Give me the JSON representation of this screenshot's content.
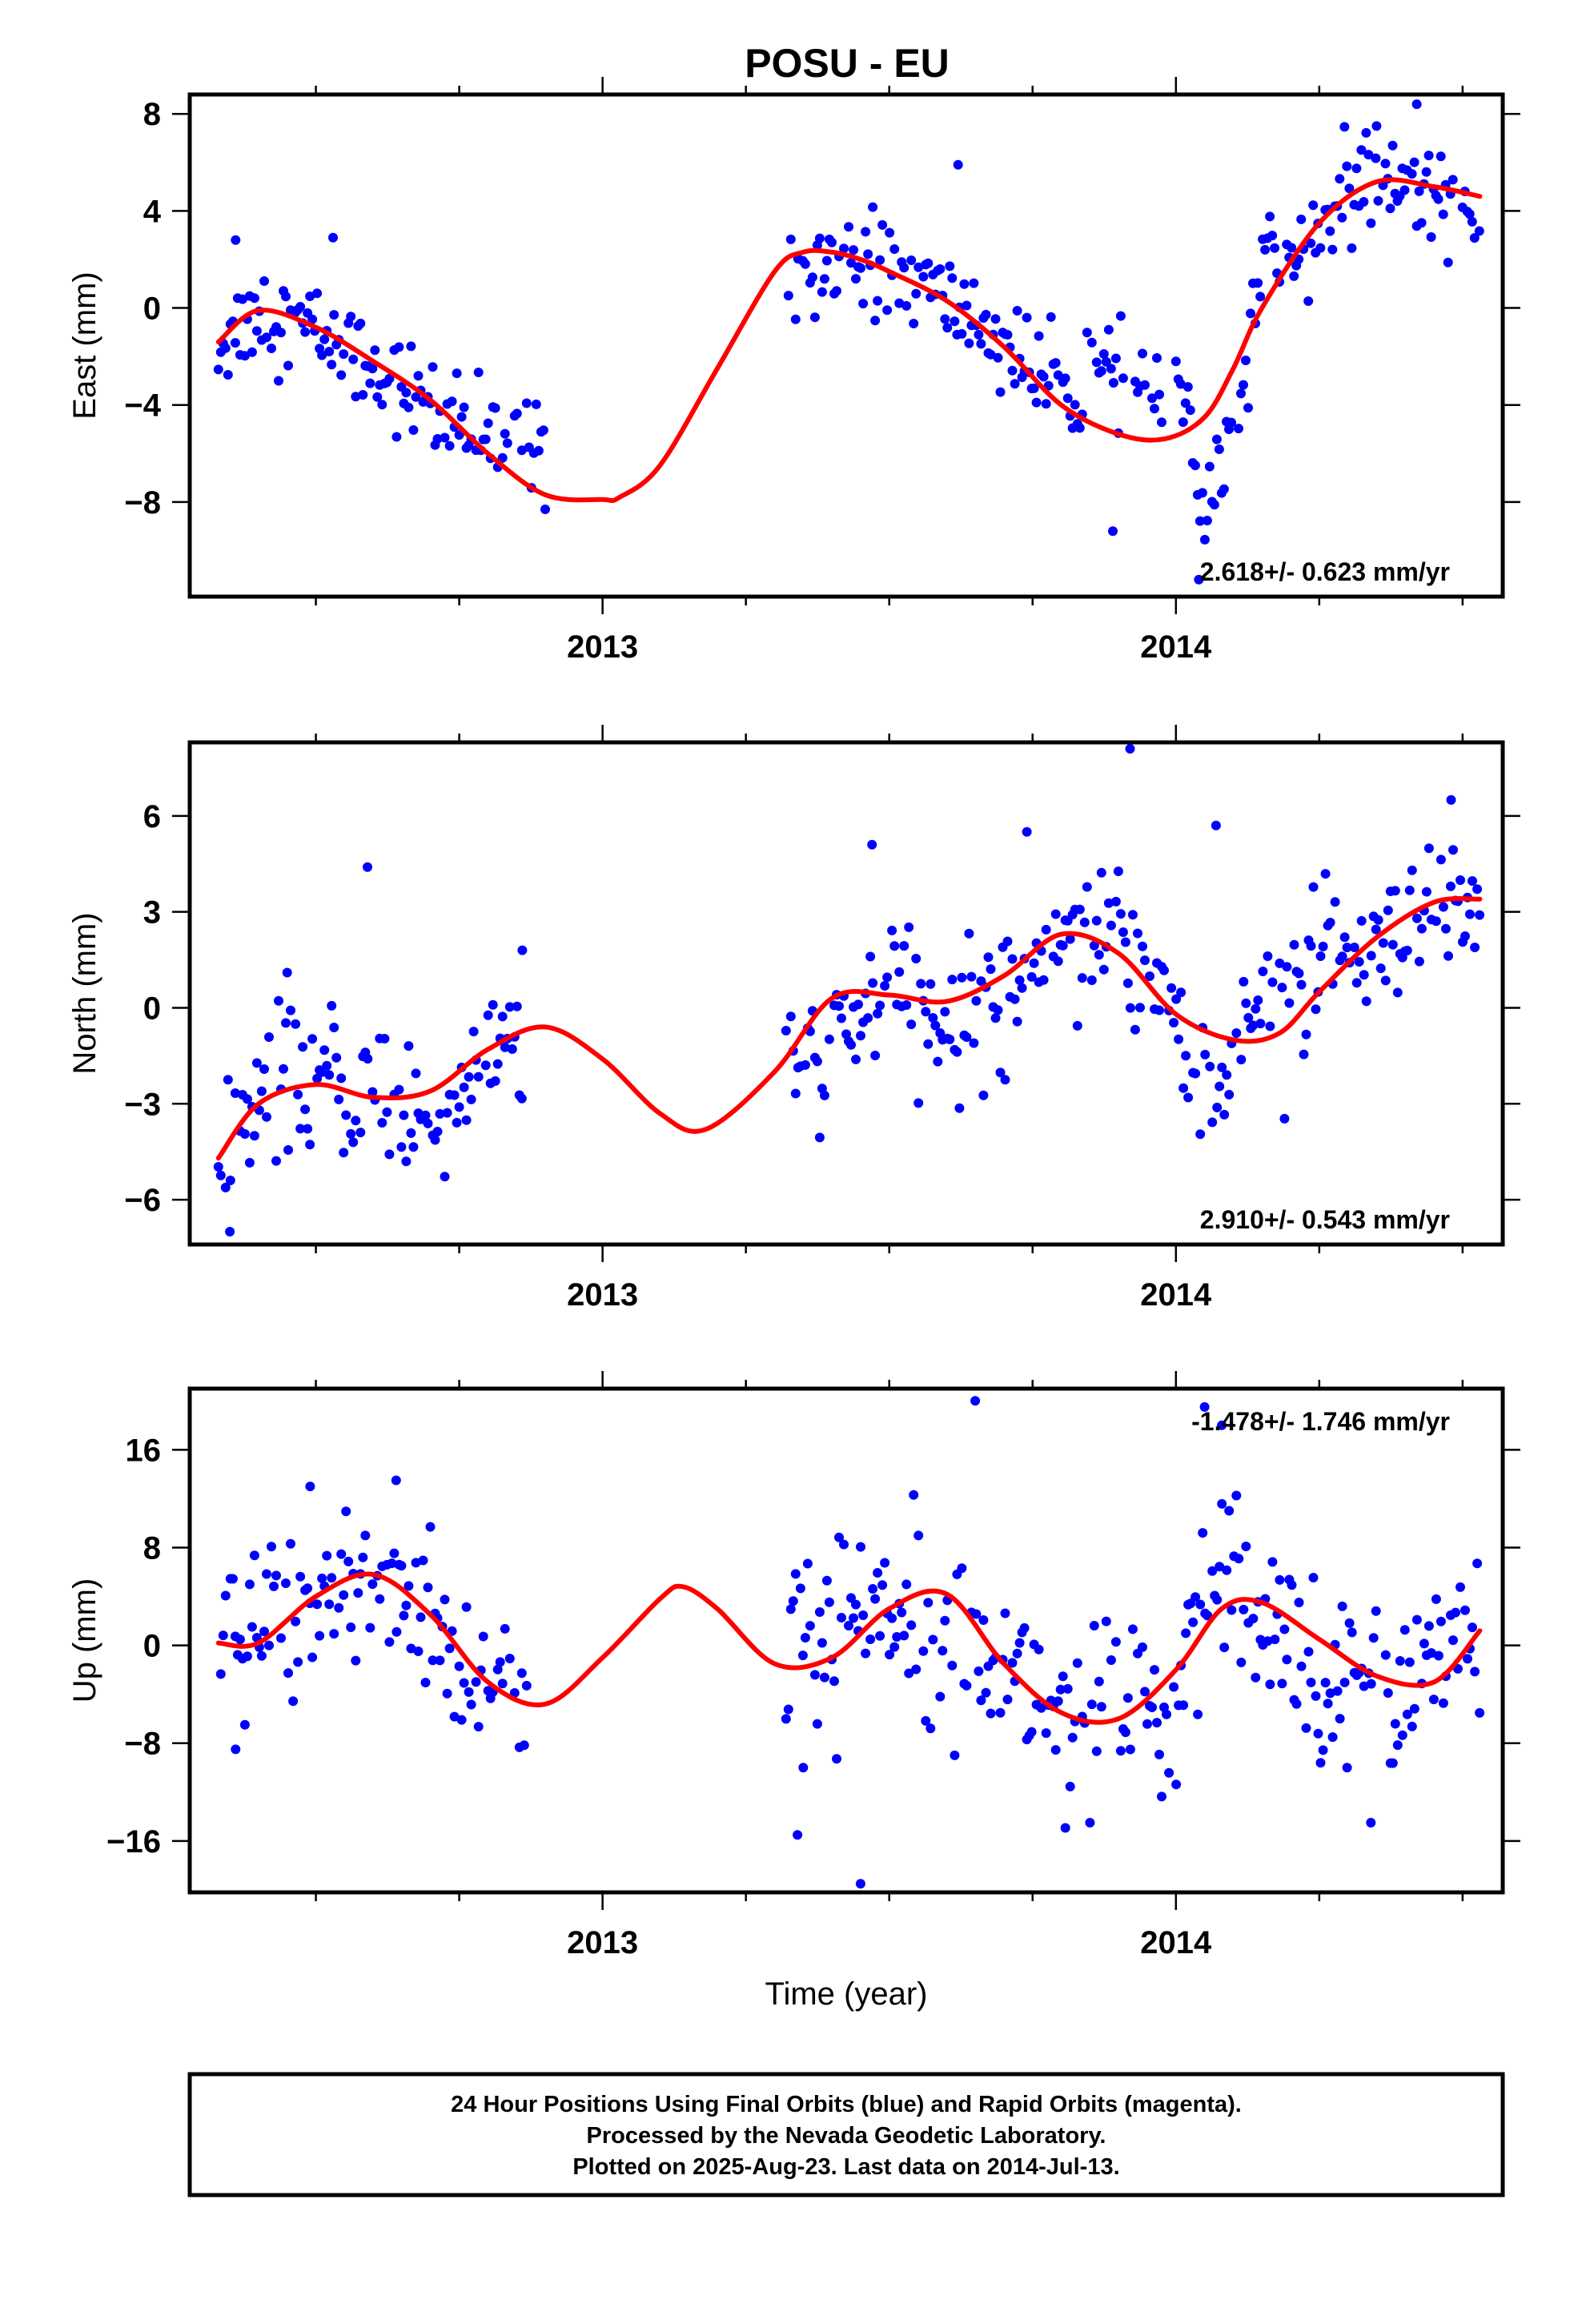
{
  "title": "POSU - EU",
  "footer": {
    "lines": [
      "24 Hour Positions Using Final Orbits (blue) and Rapid Orbits (magenta).",
      "Processed by the Nevada Geodetic Laboratory.",
      "Plotted on 2025-Aug-23. Last data on 2014-Jul-13."
    ]
  },
  "colors": {
    "points": "#0000ff",
    "model": "#ff0000",
    "frame": "#000000"
  },
  "chart_data": [
    {
      "type": "scatter",
      "panel": "east",
      "ylabel": "East (mm)",
      "xlabel": "",
      "xlim": [
        2012.28,
        2014.57
      ],
      "ylim": [
        -11.9,
        8.8
      ],
      "yticks": [
        -8,
        -4,
        0,
        4,
        8
      ],
      "xticks_major": [
        2013,
        2014
      ],
      "xticks_minor": [
        2012.25,
        2012.5,
        2012.75,
        2013.25,
        2013.5,
        2013.75,
        2014.25,
        2014.5
      ],
      "rate_label": "2.618+/- 0.623 mm/yr",
      "rate_label_position": "bottom-right",
      "model": {
        "name": "model fit",
        "x": [
          2012.33,
          2012.4,
          2012.5,
          2012.6,
          2012.7,
          2012.8,
          2012.9,
          2013.0,
          2013.03,
          2013.1,
          2013.2,
          2013.3,
          2013.35,
          2013.4,
          2013.45,
          2013.5,
          2013.6,
          2013.7,
          2013.8,
          2013.9,
          2013.98,
          2014.05,
          2014.1,
          2014.15,
          2014.25,
          2014.35,
          2014.45,
          2014.53
        ],
        "y": [
          -1.4,
          -0.1,
          -0.8,
          -2.2,
          -3.8,
          -6.0,
          -7.7,
          -7.9,
          -7.8,
          -6.5,
          -2.5,
          1.5,
          2.3,
          2.3,
          2.0,
          1.5,
          0.3,
          -1.6,
          -4.0,
          -5.2,
          -5.4,
          -4.5,
          -2.5,
          0.0,
          3.5,
          5.2,
          5.0,
          4.6
        ]
      },
      "segments": [
        {
          "x0": 2012.33,
          "x1": 2012.9,
          "pts": [
            [
              2012.33,
              -1.5
            ],
            [
              2012.4,
              -0.1
            ],
            [
              2012.5,
              -0.9
            ],
            [
              2012.6,
              -2.4
            ],
            [
              2012.7,
              -4.0
            ],
            [
              2012.75,
              -5.3
            ]
          ]
        },
        {
          "x0": 2013.32,
          "x1": 2013.98,
          "pts": [
            [
              2013.32,
              1.6
            ],
            [
              2013.4,
              2.3
            ],
            [
              2013.5,
              1.6
            ],
            [
              2013.6,
              0.3
            ],
            [
              2013.7,
              -1.4
            ],
            [
              2013.8,
              -3.8
            ],
            [
              2013.9,
              -2.6
            ],
            [
              2013.98,
              -3.5
            ]
          ]
        },
        {
          "x0": 2014.0,
          "x1": 2014.53,
          "pts": [
            [
              2014.0,
              -2.2
            ],
            [
              2014.05,
              -9.0
            ],
            [
              2014.1,
              -5.5
            ],
            [
              2014.15,
              1.8
            ],
            [
              2014.25,
              3.5
            ],
            [
              2014.35,
              5.2
            ],
            [
              2014.45,
              5.0
            ],
            [
              2014.53,
              3.4
            ]
          ]
        }
      ],
      "outliers": [
        [
          2012.36,
          2.8
        ],
        [
          2012.53,
          2.9
        ],
        [
          2012.9,
          -8.3
        ],
        [
          2013.62,
          5.9
        ],
        [
          2013.89,
          -9.2
        ],
        [
          2014.04,
          -11.2
        ],
        [
          2014.35,
          7.5
        ],
        [
          2014.42,
          8.4
        ]
      ]
    },
    {
      "type": "scatter",
      "panel": "north",
      "ylabel": "North (mm)",
      "xlabel": "",
      "xlim": [
        2012.28,
        2014.57
      ],
      "ylim": [
        -7.4,
        8.3
      ],
      "yticks": [
        -6,
        -3,
        0,
        3,
        6
      ],
      "xticks_major": [
        2013,
        2014
      ],
      "xticks_minor": [
        2012.25,
        2012.5,
        2012.75,
        2013.25,
        2013.5,
        2013.75,
        2014.25,
        2014.5
      ],
      "rate_label": "2.910+/- 0.543 mm/yr",
      "rate_label_position": "bottom-right",
      "model": {
        "name": "model fit",
        "x": [
          2012.33,
          2012.4,
          2012.5,
          2012.6,
          2012.7,
          2012.8,
          2012.9,
          2013.0,
          2013.1,
          2013.18,
          2013.3,
          2013.4,
          2013.5,
          2013.6,
          2013.7,
          2013.8,
          2013.9,
          2014.0,
          2014.1,
          2014.18,
          2014.25,
          2014.35,
          2014.45,
          2014.53
        ],
        "y": [
          -4.7,
          -3.0,
          -2.4,
          -2.8,
          -2.6,
          -1.3,
          -0.6,
          -1.6,
          -3.3,
          -3.8,
          -2.0,
          0.3,
          0.4,
          0.2,
          1.0,
          2.3,
          1.7,
          -0.2,
          -1.0,
          -0.8,
          0.5,
          2.2,
          3.3,
          3.4
        ]
      },
      "segments": [
        {
          "x0": 2012.33,
          "x1": 2012.86,
          "pts": [
            [
              2012.33,
              -4.8
            ],
            [
              2012.4,
              -3.0
            ],
            [
              2012.5,
              -2.2
            ],
            [
              2012.6,
              -2.8
            ],
            [
              2012.7,
              -3.6
            ],
            [
              2012.8,
              -1.3
            ],
            [
              2012.86,
              -1.0
            ]
          ]
        },
        {
          "x0": 2013.32,
          "x1": 2014.53,
          "pts": [
            [
              2013.32,
              -2.0
            ],
            [
              2013.4,
              -1.5
            ],
            [
              2013.5,
              0.7
            ],
            [
              2013.6,
              -0.8
            ],
            [
              2013.7,
              0.5
            ],
            [
              2013.8,
              2.6
            ],
            [
              2013.9,
              2.5
            ],
            [
              2014.0,
              0.0
            ],
            [
              2014.07,
              -3.2
            ],
            [
              2014.15,
              0.8
            ],
            [
              2014.25,
              1.2
            ],
            [
              2014.35,
              1.5
            ],
            [
              2014.45,
              2.5
            ],
            [
              2014.53,
              3.0
            ]
          ]
        }
      ],
      "outliers": [
        [
          2012.35,
          -7.0
        ],
        [
          2012.45,
          1.1
        ],
        [
          2012.59,
          4.4
        ],
        [
          2012.86,
          1.8
        ],
        [
          2013.47,
          5.1
        ],
        [
          2013.74,
          5.5
        ],
        [
          2013.92,
          8.1
        ],
        [
          2014.07,
          5.7
        ],
        [
          2014.48,
          6.5
        ]
      ]
    },
    {
      "type": "scatter",
      "panel": "up",
      "ylabel": "Up (mm)",
      "xlabel": "Time (year)",
      "xlim": [
        2012.28,
        2014.57
      ],
      "ylim": [
        -20.2,
        21.0
      ],
      "yticks": [
        -16,
        -8,
        0,
        8,
        16
      ],
      "xticks_major": [
        2013,
        2014
      ],
      "xticks_minor": [
        2012.25,
        2012.5,
        2012.75,
        2013.25,
        2013.5,
        2013.75,
        2014.25,
        2014.5
      ],
      "rate_label": "-1.478+/- 1.746 mm/yr",
      "rate_label_position": "top-right",
      "model": {
        "name": "model fit",
        "x": [
          2012.33,
          2012.4,
          2012.5,
          2012.6,
          2012.7,
          2012.8,
          2012.9,
          2013.0,
          2013.1,
          2013.14,
          2013.2,
          2013.3,
          2013.4,
          2013.5,
          2013.6,
          2013.7,
          2013.8,
          2013.9,
          2014.0,
          2014.08,
          2014.15,
          2014.25,
          2014.35,
          2014.45,
          2014.53
        ],
        "y": [
          0.2,
          0.2,
          4.0,
          5.8,
          2.5,
          -3.0,
          -4.8,
          -1.0,
          3.8,
          4.8,
          3.0,
          -1.5,
          -1.0,
          3.0,
          4.2,
          -1.5,
          -5.5,
          -6.0,
          -2.0,
          3.0,
          3.5,
          0.5,
          -2.5,
          -3.0,
          1.2
        ]
      },
      "segments": [
        {
          "x0": 2012.33,
          "x1": 2012.87,
          "pts": [
            [
              2012.33,
              0.0
            ],
            [
              2012.4,
              0.5
            ],
            [
              2012.5,
              4.0
            ],
            [
              2012.6,
              5.5
            ],
            [
              2012.7,
              2.0
            ],
            [
              2012.8,
              -3.0
            ],
            [
              2012.87,
              -4.0
            ]
          ]
        },
        {
          "x0": 2013.32,
          "x1": 2014.53,
          "pts": [
            [
              2013.32,
              -1.0
            ],
            [
              2013.4,
              1.0
            ],
            [
              2013.5,
              3.5
            ],
            [
              2013.6,
              4.0
            ],
            [
              2013.7,
              -2.0
            ],
            [
              2013.8,
              -5.0
            ],
            [
              2013.9,
              -5.5
            ],
            [
              2014.0,
              -6.0
            ],
            [
              2014.06,
              5.0
            ],
            [
              2014.12,
              4.0
            ],
            [
              2014.2,
              -1.0
            ],
            [
              2014.3,
              -2.0
            ],
            [
              2014.4,
              -2.5
            ],
            [
              2014.53,
              1.0
            ]
          ]
        }
      ],
      "outliers": [
        [
          2012.36,
          -8.5
        ],
        [
          2012.49,
          13.0
        ],
        [
          2012.64,
          13.5
        ],
        [
          2013.34,
          -15.5
        ],
        [
          2013.35,
          -10.0
        ],
        [
          2013.45,
          -19.5
        ],
        [
          2013.65,
          20.0
        ],
        [
          2014.05,
          19.5
        ],
        [
          2014.08,
          18.0
        ],
        [
          2014.34,
          -14.5
        ],
        [
          2013.85,
          -14.5
        ]
      ]
    }
  ]
}
